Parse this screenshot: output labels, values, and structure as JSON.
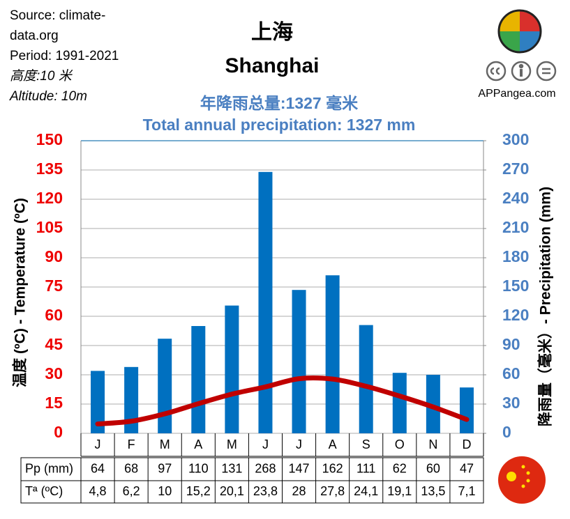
{
  "source": "Source: climate-data.org",
  "period": "Period: 1991-2021",
  "altitude_cn": "高度:10 米",
  "altitude": "Altitude: 10m",
  "site": "APPangea.com",
  "chart_data": {
    "type": "combo",
    "title": "上海",
    "subtitle": "Shanghai",
    "annotations": [
      "年降雨总量:1327 毫米",
      "Total annual precipitation: 1327 mm"
    ],
    "y_label": "温度 (ºC) - Temperature (ºC)",
    "y2_label": "降雨量（毫米）- Precipitation (mm)",
    "categories": [
      "J",
      "F",
      "M",
      "A",
      "M",
      "J",
      "J",
      "A",
      "S",
      "O",
      "N",
      "D"
    ],
    "series": [
      {
        "name": "Pp (mm)",
        "type": "bar",
        "axis": "y2",
        "color": "#0070c0",
        "values": [
          64,
          68,
          97,
          110,
          131,
          268,
          147,
          162,
          111,
          62,
          60,
          47
        ]
      },
      {
        "name": "Tª (ºC)",
        "type": "line",
        "color": "#c00000",
        "values": [
          4.8,
          6.2,
          10,
          15.2,
          20.1,
          23.8,
          28,
          27.8,
          24.1,
          19.1,
          13.5,
          7.1
        ],
        "value_labels": [
          "4,8",
          "6,2",
          "10",
          "15,2",
          "20,1",
          "23,8",
          "28",
          "27,8",
          "24,1",
          "19,1",
          "13,5",
          "7,1"
        ]
      }
    ],
    "ylim": [
      0,
      150
    ],
    "yticks": [
      0,
      15,
      30,
      45,
      60,
      75,
      90,
      105,
      120,
      135,
      150
    ],
    "y2lim": [
      0,
      300
    ],
    "y2ticks": [
      0,
      30,
      60,
      90,
      120,
      150,
      180,
      210,
      240,
      270,
      300
    ],
    "grid": true,
    "y_color": "#ee0000",
    "y2_color": "#4a7fc1"
  }
}
